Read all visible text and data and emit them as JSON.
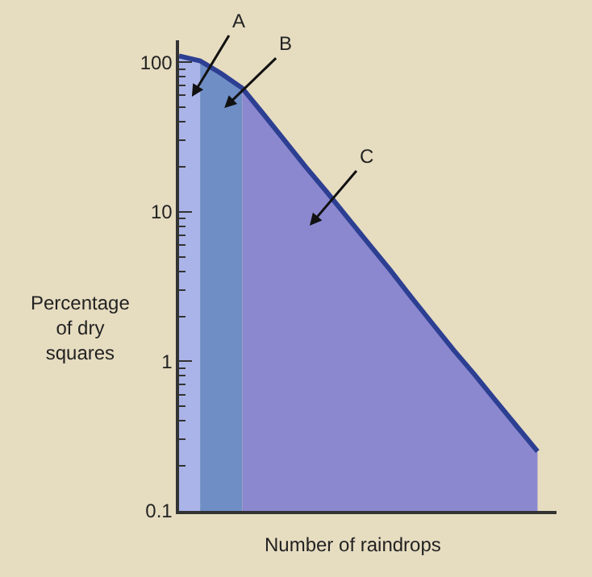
{
  "chart_data": {
    "type": "area",
    "categories": [
      null,
      null,
      null,
      null,
      null,
      null,
      null,
      null,
      null,
      null,
      null,
      null,
      null,
      null,
      null,
      null,
      null,
      null
    ],
    "series": [
      {
        "color": "#aab4e8",
        "values": [
          110,
          102,
          null,
          null,
          null,
          null,
          null,
          null,
          null,
          null,
          null,
          null,
          null,
          null,
          null,
          null,
          null,
          null
        ]
      },
      {
        "color": "#6f8ec6",
        "values": [
          null,
          102,
          84,
          67,
          null,
          null,
          null,
          null,
          null,
          null,
          null,
          null,
          null,
          null,
          null,
          null,
          null,
          null
        ]
      },
      {
        "color": "#8b88cf",
        "values": [
          null,
          null,
          null,
          67,
          45,
          30,
          20,
          13.6,
          9.1,
          6.1,
          4.1,
          2.7,
          1.8,
          1.2,
          0.82,
          0.55,
          0.37,
          0.25
        ]
      },
      {
        "type": "line",
        "color": "#2c3f92",
        "values": [
          110,
          102,
          84,
          67,
          45,
          30,
          20,
          13.6,
          9.1,
          6.1,
          4.1,
          2.7,
          1.8,
          1.2,
          0.82,
          0.55,
          0.37,
          0.25
        ]
      }
    ],
    "log": "y",
    "ylim": [
      0.1,
      140
    ],
    "yticks": [
      0.1,
      1,
      10,
      100
    ],
    "xlabel": "Number of raindrops",
    "ylabel": "Percentage\nof dry\nsquares",
    "annotations": [
      "A",
      "B",
      "C"
    ],
    "grid": false
  }
}
